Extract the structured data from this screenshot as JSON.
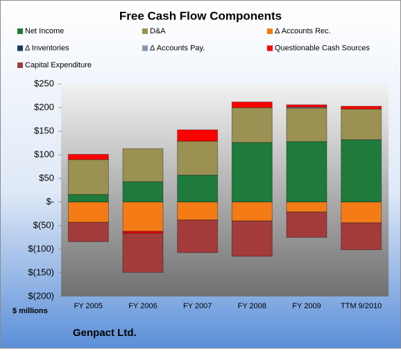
{
  "chart_data": {
    "type": "stacked-bar",
    "title": "Free Cash Flow Components",
    "y_label": "$ millions",
    "footer": "Genpact Ltd.",
    "categories": [
      "FY 2005",
      "FY 2006",
      "FY 2007",
      "FY 2008",
      "FY 2009",
      "TTM 9/2010"
    ],
    "series": [
      {
        "name": "Net Income",
        "color": "#1e7b3c",
        "values": [
          16,
          43,
          57,
          126,
          128,
          132
        ]
      },
      {
        "name": "D&A",
        "color": "#9a9152",
        "values": [
          74,
          70,
          72,
          74,
          71,
          65
        ]
      },
      {
        "name": "Δ Accounts Rec.",
        "color": "#f47b16",
        "values": [
          -43,
          -62,
          -38,
          -40,
          -21,
          -44
        ]
      },
      {
        "name": "Δ Inventories",
        "color": "#1f3864",
        "values": [
          0,
          0,
          0,
          0,
          0,
          0
        ]
      },
      {
        "name": "Δ Accounts Pay.",
        "color": "#8497b0",
        "values": [
          0,
          0,
          0,
          0,
          2,
          0
        ]
      },
      {
        "name": "Questionable Cash Sources",
        "color": "#ff0000",
        "values": [
          11,
          -4,
          24,
          12,
          5,
          6
        ]
      },
      {
        "name": "Capital Expenditure",
        "color": "#a33b3b",
        "values": [
          -41,
          -83,
          -69,
          -75,
          -54,
          -57
        ]
      }
    ],
    "ylim": [
      -200,
      250
    ],
    "yticks": [
      {
        "value": -200,
        "label": "$(200)"
      },
      {
        "value": -150,
        "label": "$(150)"
      },
      {
        "value": -100,
        "label": "$(100)"
      },
      {
        "value": -50,
        "label": "$(50)"
      },
      {
        "value": 0,
        "label": "$-"
      },
      {
        "value": 50,
        "label": "$50"
      },
      {
        "value": 100,
        "label": "$100"
      },
      {
        "value": 150,
        "label": "$150"
      },
      {
        "value": 200,
        "label": "$200"
      },
      {
        "value": 250,
        "label": "$250"
      }
    ]
  }
}
